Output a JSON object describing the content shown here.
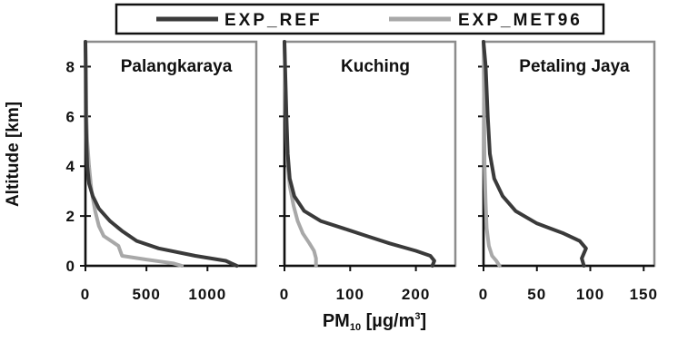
{
  "figure": {
    "ylabel": "Altitude [km]",
    "xlabel_main": "PM",
    "xlabel_sub": "10",
    "xlabel_unit_pre": " [µg/m",
    "xlabel_unit_sup": "3",
    "xlabel_unit_post": "]",
    "colors": {
      "EXP_REF": "#3a3a3a",
      "EXP_MET96": "#a8a8a8",
      "frame": "#8c8c8c"
    }
  },
  "legend": {
    "entries": [
      {
        "name": "EXP_REF",
        "color": "#3a3a3a"
      },
      {
        "name": "EXP_MET96",
        "color": "#a8a8a8"
      }
    ]
  },
  "chart_data": [
    {
      "type": "line",
      "title": "Palangkaraya",
      "xlabel": "",
      "ylabel": "Altitude [km]",
      "xlim": [
        0,
        1400
      ],
      "ylim": [
        0,
        9
      ],
      "xticks": [
        0,
        500,
        1000
      ],
      "yticks": [
        0,
        2,
        4,
        6,
        8
      ],
      "series": [
        {
          "name": "EXP_REF",
          "points": [
            [
              1240,
              0
            ],
            [
              1150,
              0.2
            ],
            [
              900,
              0.4
            ],
            [
              600,
              0.7
            ],
            [
              420,
              1.0
            ],
            [
              300,
              1.4
            ],
            [
              200,
              1.8
            ],
            [
              110,
              2.3
            ],
            [
              60,
              2.8
            ],
            [
              30,
              3.3
            ],
            [
              15,
              4.0
            ],
            [
              8,
              5.0
            ],
            [
              4,
              6.0
            ],
            [
              2,
              8.0
            ],
            [
              0,
              9.0
            ]
          ]
        },
        {
          "name": "EXP_MET96",
          "points": [
            [
              790,
              0
            ],
            [
              720,
              0.1
            ],
            [
              500,
              0.25
            ],
            [
              300,
              0.4
            ],
            [
              270,
              0.8
            ],
            [
              150,
              1.2
            ],
            [
              110,
              1.6
            ],
            [
              80,
              2.2
            ],
            [
              50,
              3.0
            ],
            [
              30,
              4.0
            ],
            [
              15,
              5.0
            ],
            [
              8,
              6.0
            ],
            [
              3,
              8.0
            ],
            [
              0,
              9.0
            ]
          ]
        }
      ]
    },
    {
      "type": "line",
      "title": "Kuching",
      "xlabel": "",
      "ylabel": "",
      "xlim": [
        0,
        260
      ],
      "ylim": [
        0,
        9
      ],
      "xticks": [
        0,
        100,
        200
      ],
      "yticks": [
        0,
        2,
        4,
        6,
        8
      ],
      "series": [
        {
          "name": "EXP_REF",
          "points": [
            [
              225,
              0
            ],
            [
              228,
              0.2
            ],
            [
              222,
              0.4
            ],
            [
              200,
              0.6
            ],
            [
              160,
              0.9
            ],
            [
              125,
              1.2
            ],
            [
              90,
              1.5
            ],
            [
              55,
              1.8
            ],
            [
              30,
              2.2
            ],
            [
              15,
              2.8
            ],
            [
              8,
              3.5
            ],
            [
              5,
              4.5
            ],
            [
              3,
              6.0
            ],
            [
              1,
              8.0
            ],
            [
              0,
              9.0
            ]
          ]
        },
        {
          "name": "EXP_MET96",
          "points": [
            [
              48,
              0
            ],
            [
              48,
              0.3
            ],
            [
              45,
              0.6
            ],
            [
              38,
              0.9
            ],
            [
              28,
              1.3
            ],
            [
              20,
              1.8
            ],
            [
              14,
              2.4
            ],
            [
              8,
              3.2
            ],
            [
              5,
              4.0
            ],
            [
              3,
              5.5
            ],
            [
              1,
              7.5
            ],
            [
              0,
              9.0
            ]
          ]
        }
      ]
    },
    {
      "type": "line",
      "title": "Petaling Jaya",
      "xlabel": "",
      "ylabel": "",
      "xlim": [
        0,
        160
      ],
      "ylim": [
        0,
        9
      ],
      "xticks": [
        0,
        50,
        100,
        150
      ],
      "yticks": [
        0,
        2,
        4,
        6,
        8
      ],
      "series": [
        {
          "name": "EXP_REF",
          "points": [
            [
              94,
              0
            ],
            [
              92,
              0.3
            ],
            [
              96,
              0.7
            ],
            [
              90,
              1.0
            ],
            [
              75,
              1.3
            ],
            [
              50,
              1.7
            ],
            [
              30,
              2.2
            ],
            [
              18,
              2.8
            ],
            [
              10,
              3.5
            ],
            [
              6,
              4.5
            ],
            [
              4,
              6.0
            ],
            [
              2,
              8.0
            ],
            [
              0,
              9.0
            ]
          ]
        },
        {
          "name": "EXP_MET96",
          "points": [
            [
              15,
              0
            ],
            [
              12,
              0.2
            ],
            [
              8,
              0.4
            ],
            [
              5,
              0.8
            ],
            [
              3,
              1.5
            ],
            [
              2,
              2.5
            ],
            [
              1,
              4.0
            ],
            [
              0,
              9.0
            ]
          ]
        }
      ]
    }
  ]
}
